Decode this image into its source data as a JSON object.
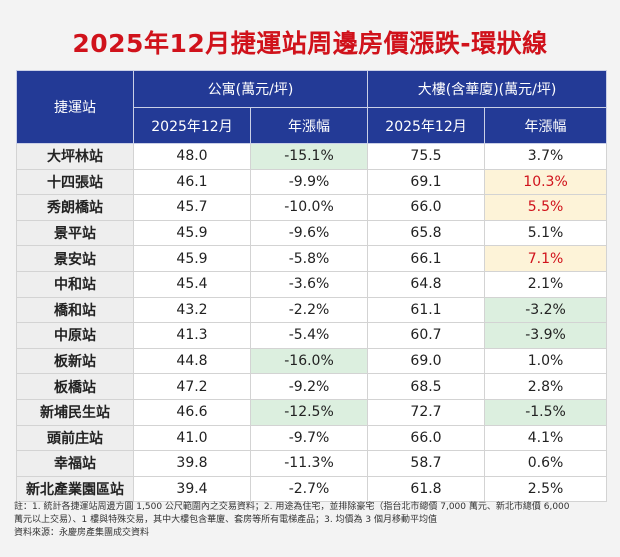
{
  "title": "2025年12月捷運站周邊房價漲跌-環狀線",
  "header": {
    "station": "捷運站",
    "apartment": "公寓(萬元/坪)",
    "building": "大樓(含華廈)(萬元/坪)",
    "price_label": "2025年12月",
    "change_label": "年漲幅"
  },
  "rows": [
    {
      "station": "大坪林站",
      "apt_price": "48.0",
      "apt_change": "-15.1%",
      "bld_price": "75.5",
      "bld_change": "3.7%"
    },
    {
      "station": "十四張站",
      "apt_price": "46.1",
      "apt_change": "-9.9%",
      "bld_price": "69.1",
      "bld_change": "10.3%"
    },
    {
      "station": "秀朗橋站",
      "apt_price": "45.7",
      "apt_change": "-10.0%",
      "bld_price": "66.0",
      "bld_change": "5.5%"
    },
    {
      "station": "景平站",
      "apt_price": "45.9",
      "apt_change": "-9.6%",
      "bld_price": "65.8",
      "bld_change": "5.1%"
    },
    {
      "station": "景安站",
      "apt_price": "45.9",
      "apt_change": "-5.8%",
      "bld_price": "66.1",
      "bld_change": "7.1%"
    },
    {
      "station": "中和站",
      "apt_price": "45.4",
      "apt_change": "-3.6%",
      "bld_price": "64.8",
      "bld_change": "2.1%"
    },
    {
      "station": "橋和站",
      "apt_price": "43.2",
      "apt_change": "-2.2%",
      "bld_price": "61.1",
      "bld_change": "-3.2%"
    },
    {
      "station": "中原站",
      "apt_price": "41.3",
      "apt_change": "-5.4%",
      "bld_price": "60.7",
      "bld_change": "-3.9%"
    },
    {
      "station": "板新站",
      "apt_price": "44.8",
      "apt_change": "-16.0%",
      "bld_price": "69.0",
      "bld_change": "1.0%"
    },
    {
      "station": "板橋站",
      "apt_price": "47.2",
      "apt_change": "-9.2%",
      "bld_price": "68.5",
      "bld_change": "2.8%"
    },
    {
      "station": "新埔民生站",
      "apt_price": "46.6",
      "apt_change": "-12.5%",
      "bld_price": "72.7",
      "bld_change": "-1.5%"
    },
    {
      "station": "頭前庄站",
      "apt_price": "41.0",
      "apt_change": "-9.7%",
      "bld_price": "66.0",
      "bld_change": "4.1%"
    },
    {
      "station": "幸福站",
      "apt_price": "39.8",
      "apt_change": "-11.3%",
      "bld_price": "58.7",
      "bld_change": "0.6%"
    },
    {
      "station": "新北產業園區站",
      "apt_price": "39.4",
      "apt_change": "-2.7%",
      "bld_price": "61.8",
      "bld_change": "2.5%"
    }
  ],
  "highlights": {
    "green": "#dcefdf",
    "yellow": "#fdf3d8",
    "red_text": "#d0121b",
    "header_bg": "#233a96"
  },
  "notes": {
    "line1": "註：1. 統計各捷運站周邊方圓 1,500 公尺範圍內之交易資料；2. 用途為住宅，並排除豪宅（指台北市總價 7,000 萬元、新北市總價 6,000",
    "line2": "萬元以上交易）、1 樓與特殊交易，其中大樓包含華廈、套房等所有電梯產品；3. 均價為 3 個月移動平均值",
    "source": "資料來源：永慶房產集團成交資料"
  }
}
